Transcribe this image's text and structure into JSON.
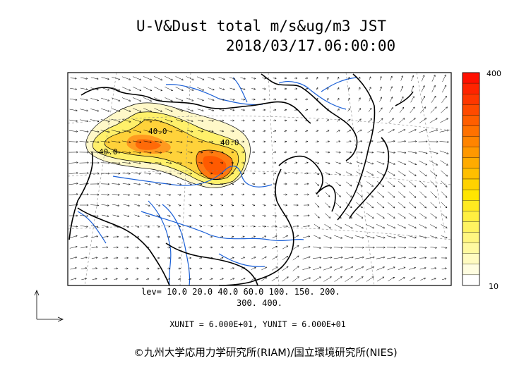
{
  "header": {
    "title": "U-V&Dust total m/s&ug/m3 JST",
    "datetime": "2018/03/17.06:00:00"
  },
  "colorbar": {
    "max_label": "400",
    "min_label": "10",
    "colors": [
      "#ffffff",
      "#fffde0",
      "#fffbc0",
      "#fff9a0",
      "#fff680",
      "#fff360",
      "#ffef40",
      "#ffea20",
      "#ffe500",
      "#ffd200",
      "#ffbf00",
      "#ffab00",
      "#ff9800",
      "#ff8400",
      "#ff7100",
      "#ff5e00",
      "#ff4a00",
      "#ff3700",
      "#ff2400",
      "#ff1000"
    ]
  },
  "contour_labels": [
    "40.0",
    "40.0",
    "40.0"
  ],
  "legend": {
    "levels_line1": "lev= 10.0 20.0 40.0 60.0 100. 150. 200.",
    "levels_line2": "300. 400.",
    "units": "XUNIT = 6.000E+01, YUNIT = 6.000E+01"
  },
  "credit": "©九州大学応用力学研究所(RIAM)/国立環境研究所(NIES)",
  "map_colors": {
    "coast": "#000000",
    "rivers": "#1a5fd6",
    "grid": "#888888",
    "vectors": "#000000"
  }
}
